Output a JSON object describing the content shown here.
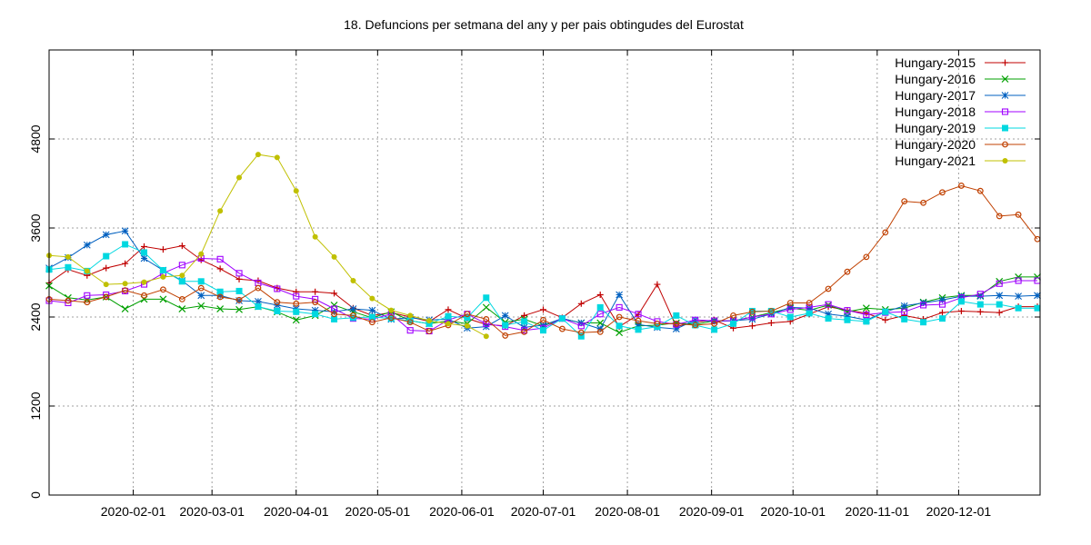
{
  "chart_data": {
    "type": "line",
    "title": "18. Defuncions per setmana del any y per pais obtingudes del Eurostat",
    "xlabel": "",
    "ylabel": "",
    "x_axis": {
      "type": "date",
      "min": "2020-01-01",
      "max": "2020-12-31"
    },
    "ylim": [
      0,
      6000
    ],
    "grid": true,
    "legend_position": "top-right",
    "yticks": [
      {
        "value": 0,
        "label": "0"
      },
      {
        "value": 1200,
        "label": "1200"
      },
      {
        "value": 2400,
        "label": "2400"
      },
      {
        "value": 3600,
        "label": "3600"
      },
      {
        "value": 4800,
        "label": "4800"
      }
    ],
    "xticks": [
      {
        "value": "2020-02-01",
        "label": "2020-02-01"
      },
      {
        "value": "2020-03-01",
        "label": "2020-03-01"
      },
      {
        "value": "2020-04-01",
        "label": "2020-04-01"
      },
      {
        "value": "2020-05-01",
        "label": "2020-05-01"
      },
      {
        "value": "2020-06-01",
        "label": "2020-06-01"
      },
      {
        "value": "2020-07-01",
        "label": "2020-07-01"
      },
      {
        "value": "2020-08-01",
        "label": "2020-08-01"
      },
      {
        "value": "2020-09-01",
        "label": "2020-09-01"
      },
      {
        "value": "2020-10-01",
        "label": "2020-10-01"
      },
      {
        "value": "2020-11-01",
        "label": "2020-11-01"
      },
      {
        "value": "2020-12-01",
        "label": "2020-12-01"
      }
    ],
    "x": [
      "2020-01-01",
      "2020-01-08",
      "2020-01-15",
      "2020-01-22",
      "2020-01-29",
      "2020-02-05",
      "2020-02-12",
      "2020-02-19",
      "2020-02-26",
      "2020-03-04",
      "2020-03-11",
      "2020-03-18",
      "2020-03-25",
      "2020-04-01",
      "2020-04-08",
      "2020-04-15",
      "2020-04-22",
      "2020-04-29",
      "2020-05-06",
      "2020-05-13",
      "2020-05-20",
      "2020-05-27",
      "2020-06-03",
      "2020-06-10",
      "2020-06-17",
      "2020-06-24",
      "2020-07-01",
      "2020-07-08",
      "2020-07-15",
      "2020-07-22",
      "2020-07-29",
      "2020-08-05",
      "2020-08-12",
      "2020-08-19",
      "2020-08-26",
      "2020-09-02",
      "2020-09-09",
      "2020-09-16",
      "2020-09-23",
      "2020-09-30",
      "2020-10-07",
      "2020-10-14",
      "2020-10-21",
      "2020-10-28",
      "2020-11-04",
      "2020-11-11",
      "2020-11-18",
      "2020-11-25",
      "2020-12-02",
      "2020-12-09",
      "2020-12-16",
      "2020-12-23",
      "2020-12-30"
    ],
    "series": [
      {
        "name": "Hungary-2015",
        "color": "#c00000",
        "marker": "plus",
        "values": [
          2860,
          3040,
          2960,
          3060,
          3120,
          3350,
          3310,
          3360,
          3170,
          3050,
          2910,
          2890,
          2790,
          2740,
          2740,
          2720,
          2520,
          2420,
          2460,
          2400,
          2340,
          2500,
          2380,
          2300,
          2280,
          2420,
          2500,
          2390,
          2580,
          2700,
          2270,
          2430,
          2840,
          2270,
          2330,
          2360,
          2250,
          2280,
          2320,
          2340,
          2440,
          2540,
          2490,
          2450,
          2360,
          2420,
          2370,
          2460,
          2480,
          2470,
          2460,
          2540,
          2540
        ]
      },
      {
        "name": "Hungary-2016",
        "color": "#00a000",
        "marker": "x",
        "values": [
          2820,
          2660,
          2630,
          2670,
          2510,
          2640,
          2640,
          2510,
          2550,
          2510,
          2500,
          2540,
          2470,
          2360,
          2420,
          2560,
          2470,
          2390,
          2470,
          2350,
          2310,
          2350,
          2310,
          2530,
          2330,
          2370,
          2280,
          2380,
          2320,
          2320,
          2190,
          2280,
          2290,
          2320,
          2300,
          2350,
          2350,
          2400,
          2460,
          2520,
          2490,
          2560,
          2470,
          2520,
          2500,
          2520,
          2600,
          2660,
          2690,
          2690,
          2880,
          2940,
          2940
        ]
      },
      {
        "name": "Hungary-2017",
        "color": "#0060c0",
        "marker": "star",
        "values": [
          3060,
          3200,
          3370,
          3510,
          3560,
          3190,
          3030,
          2890,
          2690,
          2690,
          2620,
          2610,
          2560,
          2510,
          2490,
          2470,
          2510,
          2490,
          2370,
          2390,
          2360,
          2370,
          2250,
          2270,
          2420,
          2260,
          2290,
          2380,
          2320,
          2240,
          2700,
          2300,
          2260,
          2240,
          2360,
          2340,
          2350,
          2370,
          2440,
          2530,
          2520,
          2440,
          2410,
          2360,
          2470,
          2550,
          2590,
          2630,
          2680,
          2680,
          2690,
          2680,
          2690
        ]
      },
      {
        "name": "Hungary-2018",
        "color": "#a000ff",
        "marker": "box",
        "values": [
          2620,
          2590,
          2690,
          2700,
          2750,
          2840,
          2990,
          3100,
          3190,
          3180,
          2990,
          2860,
          2780,
          2680,
          2640,
          2510,
          2380,
          2370,
          2440,
          2220,
          2210,
          2360,
          2440,
          2310,
          2270,
          2220,
          2250,
          2380,
          2280,
          2440,
          2530,
          2440,
          2340,
          2300,
          2360,
          2350,
          2350,
          2400,
          2440,
          2500,
          2530,
          2570,
          2490,
          2430,
          2460,
          2470,
          2560,
          2570,
          2660,
          2710,
          2850,
          2890,
          2890
        ]
      },
      {
        "name": "Hungary-2019",
        "color": "#00d8e0",
        "marker": "filled-box",
        "values": [
          3040,
          3070,
          3020,
          3220,
          3380,
          3270,
          3030,
          2880,
          2880,
          2740,
          2750,
          2540,
          2480,
          2470,
          2440,
          2370,
          2390,
          2400,
          2380,
          2350,
          2310,
          2410,
          2390,
          2660,
          2290,
          2340,
          2220,
          2380,
          2140,
          2530,
          2280,
          2230,
          2270,
          2420,
          2290,
          2230,
          2310,
          2480,
          2480,
          2400,
          2450,
          2380,
          2360,
          2340,
          2470,
          2370,
          2330,
          2380,
          2610,
          2570,
          2570,
          2520,
          2520
        ]
      },
      {
        "name": "Hungary-2020",
        "color": "#c04000",
        "marker": "circle",
        "values": [
          2640,
          2620,
          2600,
          2670,
          2760,
          2690,
          2770,
          2640,
          2790,
          2670,
          2630,
          2790,
          2600,
          2580,
          2600,
          2440,
          2420,
          2330,
          2390,
          2330,
          2210,
          2290,
          2440,
          2370,
          2150,
          2200,
          2360,
          2240,
          2190,
          2200,
          2400,
          2350,
          2310,
          2310,
          2290,
          2310,
          2420,
          2470,
          2480,
          2590,
          2590,
          2780,
          3010,
          3210,
          3540,
          3960,
          3940,
          4080,
          4170,
          4100,
          3760,
          3780,
          3450
        ]
      },
      {
        "name": "Hungary-2021",
        "color": "#c0c000",
        "marker": "filled-circle",
        "values": [
          3230,
          3210,
          3020,
          2840,
          2850,
          2870,
          2940,
          2960,
          3250,
          3830,
          4280,
          4590,
          4550,
          4100,
          3480,
          3210,
          2890,
          2650,
          2490,
          2420,
          2350,
          2310,
          2280,
          2140,
          null,
          null,
          null,
          null,
          null,
          null,
          null,
          null,
          null,
          null,
          null,
          null,
          null,
          null,
          null,
          null,
          null,
          null,
          null,
          null,
          null,
          null,
          null,
          null,
          null,
          null,
          null,
          null,
          null
        ]
      }
    ]
  }
}
